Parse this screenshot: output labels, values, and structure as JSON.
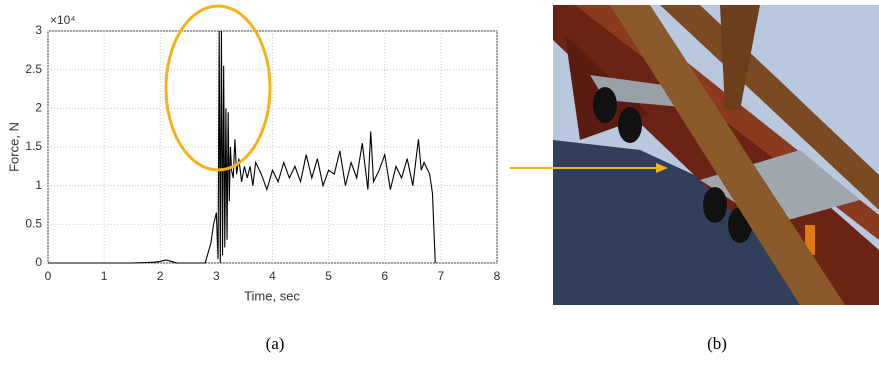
{
  "chart_data": {
    "type": "line",
    "x_label": "Time, sec",
    "y_label": "Force, N",
    "y_multiplier": "×10⁴",
    "x": [
      0,
      0.5,
      1,
      1.5,
      1.9,
      2.0,
      2.1,
      2.2,
      2.3,
      2.8,
      2.9,
      2.95,
      3.0,
      3.03,
      3.05,
      3.07,
      3.09,
      3.11,
      3.13,
      3.15,
      3.17,
      3.19,
      3.21,
      3.23,
      3.25,
      3.27,
      3.3,
      3.33,
      3.36,
      3.4,
      3.45,
      3.5,
      3.55,
      3.6,
      3.65,
      3.7,
      3.8,
      3.9,
      4.0,
      4.1,
      4.2,
      4.3,
      4.4,
      4.5,
      4.6,
      4.7,
      4.8,
      4.9,
      5.0,
      5.1,
      5.2,
      5.3,
      5.4,
      5.5,
      5.6,
      5.7,
      5.75,
      5.8,
      5.9,
      6.0,
      6.1,
      6.2,
      6.3,
      6.4,
      6.5,
      6.6,
      6.65,
      6.7,
      6.8,
      6.85,
      6.9
    ],
    "values": [
      0,
      0,
      0,
      0,
      100,
      200,
      400,
      200,
      0,
      0,
      2500,
      5000,
      6500,
      500,
      30000,
      0,
      30000,
      1000,
      25500,
      2000,
      20000,
      3000,
      19500,
      8000,
      15000,
      12000,
      11000,
      16000,
      11500,
      13500,
      10500,
      12500,
      11000,
      12500,
      10000,
      13000,
      11500,
      9500,
      12000,
      10500,
      13000,
      11000,
      12500,
      10500,
      14000,
      11000,
      13500,
      10000,
      12000,
      11500,
      14500,
      10000,
      13000,
      11000,
      15500,
      9500,
      17000,
      10500,
      12000,
      14000,
      9500,
      12500,
      11000,
      13500,
      10000,
      16000,
      12000,
      13000,
      11500,
      9000,
      0
    ],
    "color": "#000000",
    "xlim": [
      0,
      8
    ],
    "xticks": [
      0,
      1,
      2,
      3,
      4,
      5,
      6,
      7,
      8
    ],
    "ylim": [
      0,
      30000
    ],
    "yticks": [
      0,
      {
        "value": 5000,
        "label": "0.5"
      },
      {
        "value": 10000,
        "label": "1"
      },
      {
        "value": 15000,
        "label": "1.5"
      },
      {
        "value": 20000,
        "label": "2"
      },
      {
        "value": 25000,
        "label": "2.5"
      },
      {
        "value": 30000,
        "label": "3"
      }
    ],
    "grid": true
  },
  "captions": [
    "(a)",
    "(b)"
  ]
}
